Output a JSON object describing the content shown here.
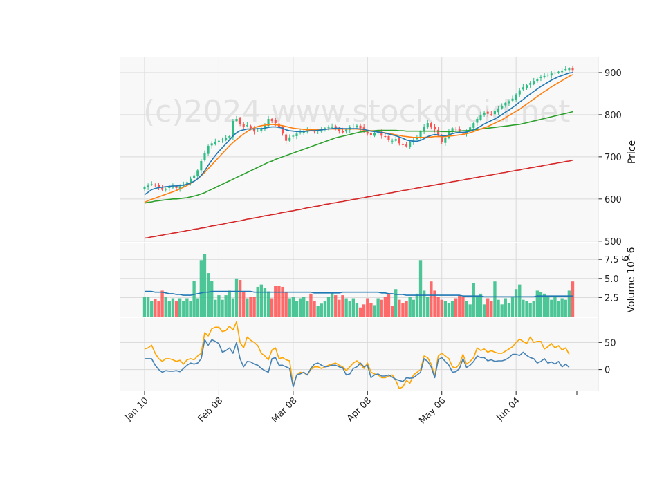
{
  "chart_data": {
    "type": "candlestick",
    "watermark": "(c)2024 www.stockdroid.net",
    "colors": {
      "up": "#2ebd85",
      "down": "#ff5050",
      "ma_fast": "#1f77b4",
      "ma_mid": "#ff7f0e",
      "ma_slow": "#2ca02c",
      "ma_long": "#d62728",
      "volume_ma": "#1f77b4",
      "osc_a": "#ffa500",
      "osc_b": "#4682b4",
      "panel_bg": "#f8f8f8",
      "grid": "#d9d9d9"
    },
    "x_ticks": [
      {
        "label": "Jan 10",
        "index": 0
      },
      {
        "label": "Feb 08",
        "index": 21
      },
      {
        "label": "Mar 08",
        "index": 42
      },
      {
        "label": "Apr 08",
        "index": 63
      },
      {
        "label": "May 06",
        "index": 84
      },
      {
        "label": "Jun 04",
        "index": 105
      }
    ],
    "price_panel": {
      "ylabel": "Price",
      "ylim": [
        498,
        936
      ],
      "yticks": [
        "500",
        "600",
        "700",
        "800",
        "900"
      ],
      "close": [
        628,
        632,
        635,
        633,
        628,
        622,
        624,
        628,
        630,
        626,
        630,
        634,
        640,
        648,
        656,
        668,
        690,
        708,
        726,
        732,
        736,
        738,
        741,
        745,
        749,
        785,
        790,
        778,
        772,
        775,
        768,
        760,
        762,
        768,
        775,
        790,
        785,
        780,
        770,
        755,
        738,
        746,
        750,
        755,
        758,
        762,
        765,
        763,
        760,
        762,
        765,
        768,
        770,
        772,
        768,
        762,
        758,
        765,
        770,
        772,
        774,
        768,
        760,
        755,
        752,
        756,
        758,
        750,
        748,
        740,
        738,
        742,
        732,
        728,
        725,
        735,
        740,
        745,
        760,
        772,
        780,
        770,
        765,
        750,
        735,
        745,
        760,
        768,
        765,
        760,
        755,
        760,
        770,
        780,
        790,
        800,
        805,
        802,
        800,
        808,
        815,
        820,
        828,
        832,
        838,
        848,
        858,
        865,
        870,
        875,
        880,
        885,
        890,
        892,
        895,
        898,
        900,
        902,
        905,
        908,
        910,
        906
      ],
      "ma_fast": [
        610,
        616,
        622,
        625,
        627,
        628,
        629,
        630,
        631,
        631,
        632,
        633,
        635,
        638,
        642,
        648,
        656,
        667,
        680,
        692,
        703,
        713,
        722,
        731,
        740,
        750,
        757,
        762,
        764,
        766,
        766,
        766,
        767,
        767,
        768,
        770,
        771,
        771,
        770,
        768,
        764,
        762,
        761,
        760,
        760,
        760,
        761,
        762,
        762,
        763,
        764,
        765,
        766,
        767,
        768,
        768,
        767,
        767,
        767,
        767,
        767,
        766,
        765,
        763,
        761,
        760,
        759,
        758,
        756,
        754,
        752,
        750,
        747,
        744,
        740,
        738,
        737,
        737,
        739,
        743,
        748,
        751,
        753,
        752,
        750,
        750,
        752,
        755,
        757,
        758,
        758,
        759,
        761,
        764,
        768,
        773,
        778,
        782,
        786,
        790,
        795,
        800,
        806,
        811,
        817,
        823,
        830,
        836,
        843,
        849,
        855,
        861,
        867,
        872,
        877,
        882,
        886,
        890,
        893,
        896,
        899,
        900
      ],
      "ma_mid": [
        592,
        596,
        599,
        602,
        605,
        608,
        611,
        614,
        617,
        620,
        624,
        628,
        632,
        637,
        642,
        648,
        655,
        663,
        672,
        681,
        690,
        699,
        708,
        717,
        726,
        734,
        741,
        748,
        754,
        760,
        765,
        769,
        772,
        774,
        775,
        776,
        777,
        776,
        775,
        774,
        772,
        770,
        768,
        767,
        766,
        765,
        764,
        764,
        764,
        764,
        765,
        765,
        766,
        766,
        766,
        766,
        766,
        766,
        766,
        766,
        766,
        765,
        764,
        763,
        762,
        761,
        760,
        758,
        757,
        755,
        754,
        752,
        751,
        749,
        748,
        747,
        746,
        746,
        746,
        746,
        747,
        747,
        748,
        748,
        748,
        748,
        749,
        750,
        751,
        752,
        753,
        755,
        757,
        760,
        763,
        766,
        769,
        772,
        776,
        780,
        784,
        788,
        793,
        798,
        803,
        808,
        813,
        819,
        825,
        831,
        837,
        843,
        849,
        855,
        860,
        866,
        871,
        876,
        881,
        886,
        891,
        895
      ],
      "ma_slow": [
        590,
        592,
        593,
        595,
        596,
        597,
        598,
        599,
        600,
        600,
        601,
        602,
        603,
        605,
        607,
        609,
        612,
        615,
        619,
        623,
        627,
        631,
        635,
        639,
        643,
        647,
        651,
        655,
        659,
        663,
        667,
        671,
        675,
        679,
        683,
        687,
        690,
        694,
        697,
        700,
        703,
        706,
        709,
        712,
        715,
        718,
        721,
        724,
        727,
        730,
        733,
        736,
        739,
        742,
        745,
        747,
        749,
        751,
        753,
        755,
        757,
        759,
        760,
        761,
        762,
        762,
        763,
        763,
        763,
        763,
        763,
        763,
        762,
        762,
        761,
        761,
        761,
        761,
        761,
        761,
        761,
        761,
        761,
        761,
        760,
        760,
        760,
        760,
        761,
        761,
        762,
        762,
        763,
        764,
        765,
        766,
        767,
        768,
        769,
        770,
        771,
        772,
        773,
        774,
        775,
        776,
        777,
        779,
        781,
        783,
        785,
        787,
        789,
        791,
        793,
        795,
        797,
        799,
        801,
        803,
        805,
        807
      ],
      "ma_long": [
        507,
        508,
        510,
        511,
        513,
        514,
        516,
        517,
        519,
        520,
        522,
        523,
        525,
        526,
        528,
        529,
        531,
        532,
        534,
        536,
        537,
        539,
        540,
        542,
        544,
        545,
        547,
        548,
        550,
        552,
        553,
        555,
        556,
        558,
        560,
        561,
        563,
        564,
        566,
        568,
        569,
        571,
        572,
        574,
        575,
        577,
        579,
        580,
        582,
        583,
        585,
        587,
        588,
        590,
        591,
        593,
        594,
        596,
        597,
        599,
        600,
        602,
        603,
        605,
        606,
        608,
        609,
        611,
        612,
        614,
        615,
        617,
        618,
        620,
        621,
        623,
        624,
        626,
        627,
        629,
        630,
        632,
        633,
        635,
        636,
        638,
        639,
        641,
        642,
        644,
        645,
        647,
        648,
        650,
        651,
        653,
        654,
        656,
        657,
        659,
        660,
        662,
        663,
        665,
        666,
        668,
        669,
        671,
        672,
        674,
        675,
        677,
        678,
        680,
        681,
        683,
        684,
        686,
        687,
        689,
        690,
        692
      ]
    },
    "volume_panel": {
      "ylabel": "Volume  10^6",
      "ylim": [
        0,
        9.6
      ],
      "yticks": [
        "2.5",
        "5.0",
        "7.5"
      ],
      "values": [
        2.6,
        2.6,
        2.0,
        2.3,
        2.0,
        3.4,
        2.6,
        2.0,
        2.4,
        2.0,
        2.4,
        2.0,
        2.4,
        2.0,
        4.7,
        2.4,
        7.4,
        8.2,
        5.7,
        4.7,
        2.2,
        2.8,
        2.2,
        2.8,
        3.4,
        2.4,
        5.0,
        4.8,
        3.2,
        2.4,
        2.6,
        2.6,
        3.9,
        4.2,
        3.8,
        3.3,
        2.4,
        4.0,
        4.0,
        3.9,
        3.2,
        2.4,
        2.6,
        2.0,
        2.4,
        2.6,
        2.0,
        3.0,
        2.0,
        1.4,
        1.7,
        2.0,
        2.6,
        3.2,
        2.8,
        2.2,
        2.8,
        2.4,
        2.0,
        2.4,
        1.8,
        1.2,
        1.6,
        2.4,
        1.8,
        1.5,
        2.4,
        2.2,
        2.6,
        3.0,
        1.4,
        3.6,
        2.2,
        1.8,
        2.0,
        2.6,
        2.2,
        3.0,
        7.4,
        3.4,
        2.6,
        4.6,
        3.4,
        2.6,
        2.2,
        2.0,
        1.8,
        2.0,
        2.4,
        2.8,
        2.6,
        2.0,
        1.6,
        4.4,
        2.6,
        3.0,
        1.6,
        2.4,
        2.0,
        4.6,
        2.2,
        1.6,
        2.4,
        1.8,
        2.6,
        3.6,
        4.2,
        2.2,
        2.0,
        1.8,
        2.0,
        3.4,
        3.2,
        3.0,
        2.6,
        2.2,
        2.6,
        2.0,
        2.4,
        2.2,
        3.4,
        4.6
      ],
      "ma": [
        3.3,
        3.3,
        3.3,
        3.2,
        3.2,
        3.2,
        3.1,
        3.0,
        3.0,
        2.9,
        2.9,
        2.8,
        2.8,
        2.8,
        2.9,
        3.0,
        3.1,
        3.2,
        3.2,
        3.3,
        3.3,
        3.3,
        3.3,
        3.3,
        3.3,
        3.3,
        3.3,
        3.3,
        3.3,
        3.3,
        3.3,
        3.2,
        3.2,
        3.2,
        3.2,
        3.2,
        3.2,
        3.2,
        3.2,
        3.2,
        3.2,
        3.2,
        3.2,
        3.2,
        3.2,
        3.2,
        3.2,
        3.2,
        3.1,
        3.1,
        3.1,
        3.1,
        3.1,
        3.1,
        3.1,
        3.1,
        3.2,
        3.2,
        3.2,
        3.2,
        3.2,
        3.2,
        3.2,
        3.2,
        3.2,
        3.2,
        3.2,
        3.1,
        3.1,
        3.0,
        3.0,
        2.9,
        2.9,
        2.9,
        2.8,
        2.8,
        2.8,
        2.8,
        2.8,
        2.8,
        2.8,
        2.8,
        2.8,
        2.8,
        2.8,
        2.8,
        2.8,
        2.8,
        2.8,
        2.8,
        2.7,
        2.7,
        2.7,
        2.7,
        2.7,
        2.7,
        2.6,
        2.6,
        2.6,
        2.6,
        2.6,
        2.6,
        2.6,
        2.6,
        2.6,
        2.6,
        2.6,
        2.6,
        2.6,
        2.6,
        2.6,
        2.7,
        2.7,
        2.7,
        2.7,
        2.7,
        2.7,
        2.7,
        2.7,
        2.7,
        2.7,
        2.7
      ]
    },
    "oscillator_panel": {
      "ylim": [
        -40,
        95
      ],
      "yticks": [
        "0",
        "50"
      ],
      "line_a": [
        38,
        40,
        45,
        30,
        20,
        15,
        20,
        20,
        18,
        15,
        17,
        10,
        18,
        20,
        18,
        25,
        30,
        68,
        62,
        75,
        78,
        78,
        70,
        72,
        80,
        73,
        88,
        50,
        40,
        60,
        54,
        50,
        44,
        30,
        25,
        18,
        36,
        40,
        20,
        22,
        18,
        16,
        -30,
        -10,
        -5,
        -6,
        -10,
        0,
        5,
        5,
        2,
        5,
        8,
        10,
        12,
        8,
        5,
        -2,
        5,
        12,
        16,
        10,
        2,
        12,
        -5,
        -8,
        -10,
        -15,
        -15,
        -12,
        -10,
        -20,
        -35,
        -32,
        -20,
        -25,
        -10,
        -5,
        0,
        25,
        22,
        10,
        -12,
        25,
        30,
        25,
        20,
        5,
        3,
        10,
        28,
        10,
        15,
        22,
        40,
        35,
        38,
        32,
        35,
        32,
        30,
        30,
        34,
        38,
        42,
        50,
        56,
        52,
        48,
        60,
        50,
        52,
        52,
        38,
        42,
        48,
        40,
        44,
        36,
        40,
        28
      ],
      "line_b": [
        20,
        20,
        20,
        8,
        0,
        -5,
        -2,
        -3,
        -3,
        -2,
        -4,
        2,
        8,
        12,
        10,
        12,
        20,
        55,
        45,
        55,
        52,
        48,
        32,
        35,
        40,
        30,
        50,
        20,
        5,
        15,
        14,
        10,
        8,
        2,
        -2,
        -5,
        20,
        22,
        8,
        8,
        5,
        2,
        -32,
        -10,
        -8,
        -5,
        -10,
        2,
        10,
        12,
        8,
        5,
        6,
        8,
        8,
        5,
        3,
        -10,
        -8,
        2,
        5,
        12,
        5,
        8,
        -15,
        -10,
        -8,
        -12,
        -12,
        -10,
        -14,
        -18,
        -20,
        -22,
        -15,
        -16,
        -15,
        -10,
        -5,
        20,
        15,
        5,
        -15,
        18,
        22,
        15,
        8,
        -5,
        -4,
        2,
        20,
        4,
        8,
        15,
        25,
        22,
        22,
        16,
        18,
        15,
        16,
        16,
        18,
        22,
        28,
        28,
        26,
        32,
        26,
        22,
        20,
        12,
        15,
        20,
        12,
        14,
        10,
        15,
        5,
        10,
        4
      ]
    }
  }
}
